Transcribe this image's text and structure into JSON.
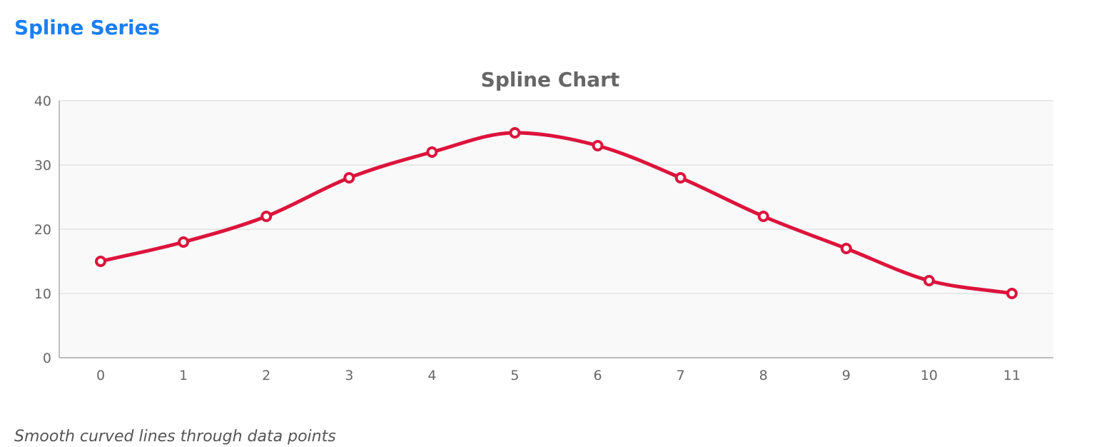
{
  "header": {
    "title": "Spline Series"
  },
  "caption": "Smooth curved lines through data points",
  "colors": {
    "header_title": "#1a7ff5",
    "line": "#dc143c",
    "plot_background": "#f9f9f9",
    "grid": "#dddddd"
  },
  "chart_data": {
    "type": "line",
    "curve": "spline",
    "title": "Spline Chart",
    "x": [
      0,
      1,
      2,
      3,
      4,
      5,
      6,
      7,
      8,
      9,
      10,
      11
    ],
    "x_tick_labels": [
      "0",
      "1",
      "2",
      "3",
      "4",
      "5",
      "6",
      "7",
      "8",
      "9",
      "10",
      "11"
    ],
    "y_ticks": [
      0,
      10,
      20,
      30,
      40
    ],
    "ylim": [
      0,
      40
    ],
    "series": [
      {
        "values": [
          15,
          18,
          22,
          28,
          32,
          35,
          33,
          28,
          22,
          17,
          12,
          10
        ],
        "color": "#dc143c",
        "markers": "hollow-circle"
      }
    ],
    "grid": true,
    "legend": false
  }
}
